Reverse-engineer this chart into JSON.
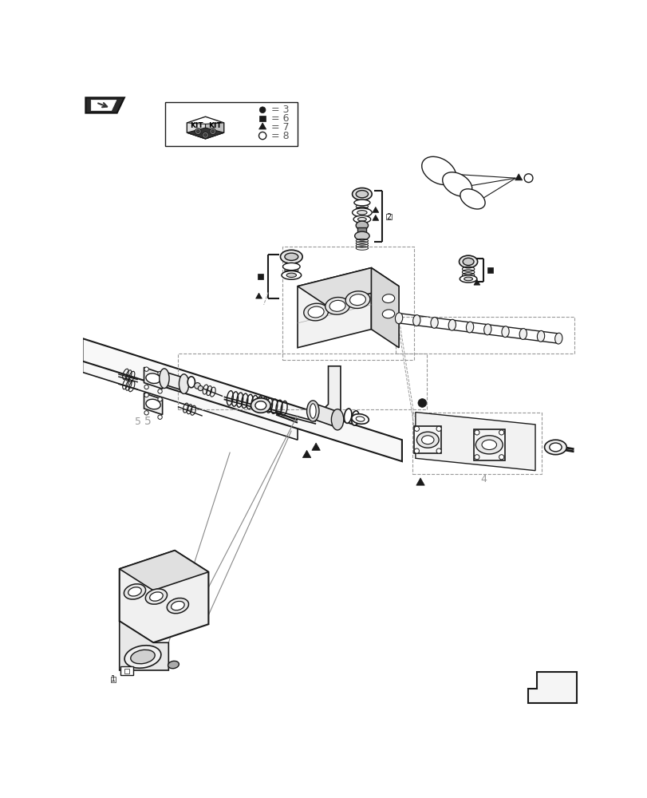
{
  "bg_color": "#ffffff",
  "lc": "#1a1a1a",
  "gc": "#999999",
  "figsize": [
    8.12,
    10.0
  ],
  "dpi": 100
}
